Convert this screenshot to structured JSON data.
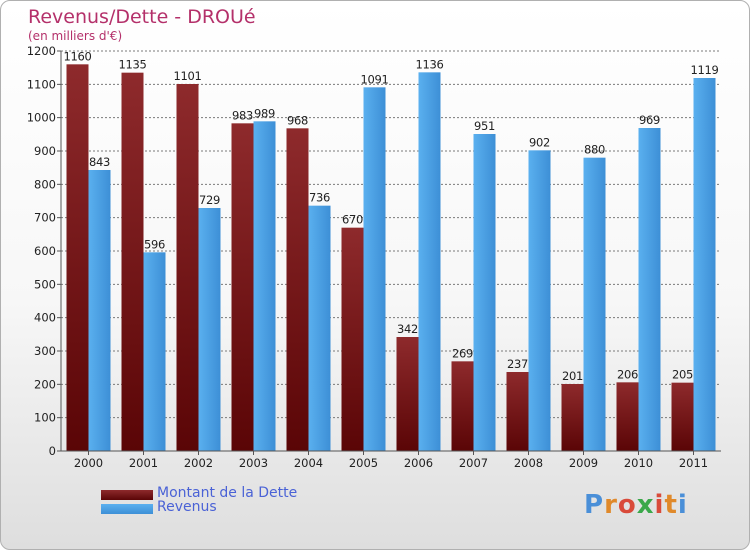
{
  "title": "Revenus/Dette - DROUé",
  "subtitle": "(en milliers d'€)",
  "logo": "Proxiti",
  "colors": {
    "dette": "#7a0f12",
    "revenus": "#4aa3e8",
    "grid": "#7a7a7a",
    "title": "#b4306a",
    "legend_text": "#4a62d6"
  },
  "legend": [
    {
      "label": "Montant de la Dette",
      "color": "#7a0f12"
    },
    {
      "label": "Revenus",
      "color": "#4aa3e8"
    }
  ],
  "chart_data": {
    "type": "bar",
    "categories": [
      "2000",
      "2001",
      "2002",
      "2003",
      "2004",
      "2005",
      "2006",
      "2007",
      "2008",
      "2009",
      "2010",
      "2011"
    ],
    "series": [
      {
        "name": "Montant de la Dette",
        "values": [
          1160,
          1135,
          1101,
          983,
          968,
          670,
          342,
          269,
          237,
          201,
          206,
          205
        ]
      },
      {
        "name": "Revenus",
        "values": [
          843,
          596,
          729,
          989,
          736,
          1091,
          1136,
          951,
          902,
          880,
          969,
          1119
        ]
      }
    ],
    "ylim": [
      0,
      1200
    ],
    "yticks": [
      0,
      100,
      200,
      300,
      400,
      500,
      600,
      700,
      800,
      900,
      1000,
      1100,
      1200
    ],
    "grid": true,
    "legend_position": "bottom-left"
  }
}
